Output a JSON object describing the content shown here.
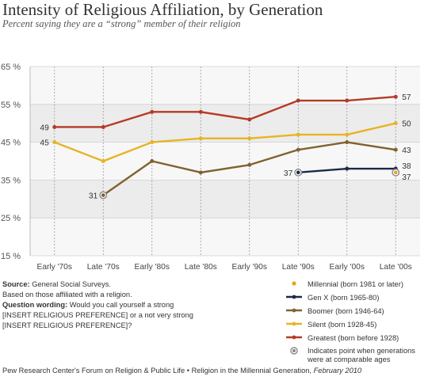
{
  "header": {
    "title": "Intensity of Religious Affiliation, by Generation",
    "subtitle": "Percent saying they are a “strong” member of their religion"
  },
  "notes": {
    "source_label": "Source:",
    "source_text": "General Social Surveys.",
    "based_on": "Based on those affiliated with a religion.",
    "question_label": "Question wording:",
    "question_text_1": "Would you call yourself a strong",
    "question_text_2": "[INSERT RELIGIOUS PREFERENCE] or a not very strong",
    "question_text_3": "[INSERT RELIGIOUS PREFERENCE]?"
  },
  "legend": {
    "items": [
      {
        "label": "Millennial (born 1981 or later)",
        "color": "#e8a21f",
        "kind": "point"
      },
      {
        "label": "Gen X (born 1965-80)",
        "color": "#1b2b48",
        "kind": "line"
      },
      {
        "label": "Boomer (born 1946-64)",
        "color": "#80622f",
        "kind": "line"
      },
      {
        "label": "Silent (born 1928-45)",
        "color": "#e8b424",
        "kind": "line"
      },
      {
        "label": "Greatest (born before 1928)",
        "color": "#b53a25",
        "kind": "line"
      }
    ],
    "comparable_label": "Indicates point when generations were at comparable ages"
  },
  "footer": {
    "text": "Pew Research Center's Forum on Religion & Public Life • Religion in the Millennial Generation,",
    "date": "February 2010"
  },
  "chart_data": {
    "type": "line",
    "title": "Intensity of Religious Affiliation, by Generation",
    "subtitle": "Percent saying they are a “strong” member of their religion",
    "categories": [
      "Early '70s",
      "Late '70s",
      "Early '80s",
      "Late '80s",
      "Early '90s",
      "Late '90s",
      "Early '00s",
      "Late '00s"
    ],
    "y_ticks": [
      "65 %",
      "55 %",
      "45 %",
      "35 %",
      "25 %",
      "15 %"
    ],
    "ylim": [
      15,
      65
    ],
    "series": [
      {
        "name": "Greatest (born before 1928)",
        "color": "#b53a25",
        "values": [
          49,
          49,
          53,
          53,
          51,
          56,
          56,
          57
        ]
      },
      {
        "name": "Silent (born 1928-45)",
        "color": "#e8b424",
        "values": [
          45,
          40,
          45,
          46,
          46,
          47,
          47,
          50
        ]
      },
      {
        "name": "Boomer (born 1946-64)",
        "color": "#80622f",
        "values": [
          null,
          31,
          40,
          37,
          39,
          43,
          45,
          43
        ]
      },
      {
        "name": "Gen X (born 1965-80)",
        "color": "#1b2b48",
        "values": [
          null,
          null,
          null,
          null,
          null,
          37,
          38,
          38
        ]
      },
      {
        "name": "Millennial (born 1981 or later)",
        "color": "#e8a21f",
        "values": [
          null,
          null,
          null,
          null,
          null,
          null,
          null,
          37
        ]
      }
    ],
    "data_labels": [
      {
        "series": "Greatest (born before 1928)",
        "category": "Early '70s",
        "text": "49",
        "side": "left"
      },
      {
        "series": "Greatest (born before 1928)",
        "category": "Late '00s",
        "text": "57",
        "side": "right"
      },
      {
        "series": "Silent (born 1928-45)",
        "category": "Early '70s",
        "text": "45",
        "side": "left"
      },
      {
        "series": "Silent (born 1928-45)",
        "category": "Late '00s",
        "text": "50",
        "side": "right"
      },
      {
        "series": "Boomer (born 1946-64)",
        "category": "Late '70s",
        "text": "31",
        "side": "left"
      },
      {
        "series": "Boomer (born 1946-64)",
        "category": "Late '00s",
        "text": "43",
        "side": "right"
      },
      {
        "series": "Gen X (born 1965-80)",
        "category": "Late '90s",
        "text": "37",
        "side": "left"
      },
      {
        "series": "Gen X (born 1965-80)",
        "category": "Late '00s",
        "text": "38",
        "side": "right-up"
      },
      {
        "series": "Millennial (born 1981 or later)",
        "category": "Late '00s",
        "text": "37",
        "side": "right-down"
      }
    ],
    "comparable_points": [
      {
        "series": "Boomer (born 1946-64)",
        "category": "Late '70s"
      },
      {
        "series": "Gen X (born 1965-80)",
        "category": "Late '90s"
      },
      {
        "series": "Millennial (born 1981 or later)",
        "category": "Late '00s"
      }
    ],
    "grid": true,
    "shaded_bands": [
      [
        25,
        35
      ],
      [
        45,
        55
      ]
    ],
    "legend_position": "bottom-right"
  }
}
